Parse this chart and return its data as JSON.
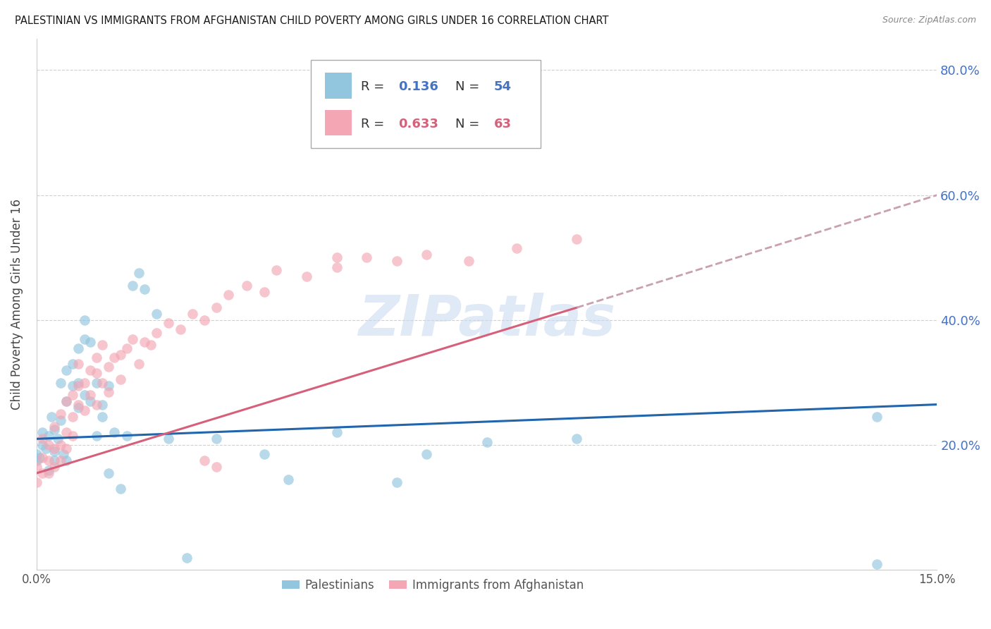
{
  "title": "PALESTINIAN VS IMMIGRANTS FROM AFGHANISTAN CHILD POVERTY AMONG GIRLS UNDER 16 CORRELATION CHART",
  "source": "Source: ZipAtlas.com",
  "ylabel": "Child Poverty Among Girls Under 16",
  "color_blue": "#92c5de",
  "color_pink": "#f4a6b4",
  "line_blue": "#2166ac",
  "line_pink": "#d6607a",
  "line_dashed_color": "#c8a0b0",
  "watermark_text": "ZIPatlas",
  "watermark_color": "#c8d8f0",
  "legend1_label": "R = ",
  "legend1_R": "0.136",
  "legend1_N_label": "N = ",
  "legend1_N": "54",
  "legend2_label": "R = ",
  "legend2_R": "0.633",
  "legend2_N_label": "N = ",
  "legend2_N": "63",
  "bottom_label1": "Palestinians",
  "bottom_label2": "Immigrants from Afghanistan",
  "xlim": [
    0.0,
    0.15
  ],
  "ylim": [
    0.0,
    0.85
  ],
  "background_color": "#ffffff",
  "grid_color": "#d0d0d0",
  "palestinians_x": [
    0.0,
    0.0,
    0.0005,
    0.001,
    0.001,
    0.0015,
    0.002,
    0.002,
    0.0025,
    0.003,
    0.003,
    0.003,
    0.0035,
    0.004,
    0.004,
    0.0045,
    0.005,
    0.005,
    0.005,
    0.006,
    0.006,
    0.007,
    0.007,
    0.007,
    0.008,
    0.008,
    0.008,
    0.009,
    0.009,
    0.01,
    0.01,
    0.011,
    0.011,
    0.012,
    0.012,
    0.013,
    0.014,
    0.015,
    0.016,
    0.017,
    0.018,
    0.02,
    0.022,
    0.025,
    0.03,
    0.038,
    0.042,
    0.05,
    0.06,
    0.065,
    0.075,
    0.09,
    0.14,
    0.14
  ],
  "palestinians_y": [
    0.175,
    0.185,
    0.18,
    0.2,
    0.22,
    0.195,
    0.16,
    0.215,
    0.245,
    0.19,
    0.225,
    0.175,
    0.21,
    0.24,
    0.3,
    0.185,
    0.27,
    0.32,
    0.175,
    0.295,
    0.33,
    0.355,
    0.3,
    0.26,
    0.4,
    0.37,
    0.28,
    0.365,
    0.27,
    0.3,
    0.215,
    0.245,
    0.265,
    0.295,
    0.155,
    0.22,
    0.13,
    0.215,
    0.455,
    0.475,
    0.45,
    0.41,
    0.21,
    0.02,
    0.21,
    0.185,
    0.145,
    0.22,
    0.14,
    0.185,
    0.205,
    0.21,
    0.245,
    0.01
  ],
  "afghanistan_x": [
    0.0,
    0.0,
    0.001,
    0.001,
    0.001,
    0.002,
    0.002,
    0.002,
    0.003,
    0.003,
    0.003,
    0.004,
    0.004,
    0.004,
    0.005,
    0.005,
    0.005,
    0.006,
    0.006,
    0.006,
    0.007,
    0.007,
    0.007,
    0.008,
    0.008,
    0.009,
    0.009,
    0.01,
    0.01,
    0.01,
    0.011,
    0.011,
    0.012,
    0.012,
    0.013,
    0.014,
    0.014,
    0.015,
    0.016,
    0.017,
    0.018,
    0.019,
    0.02,
    0.022,
    0.024,
    0.026,
    0.028,
    0.03,
    0.032,
    0.035,
    0.038,
    0.04,
    0.045,
    0.05,
    0.055,
    0.06,
    0.065,
    0.072,
    0.08,
    0.09,
    0.05,
    0.028,
    0.03
  ],
  "afghanistan_y": [
    0.14,
    0.165,
    0.155,
    0.18,
    0.21,
    0.175,
    0.2,
    0.155,
    0.195,
    0.23,
    0.165,
    0.2,
    0.25,
    0.175,
    0.22,
    0.27,
    0.195,
    0.245,
    0.28,
    0.215,
    0.295,
    0.33,
    0.265,
    0.3,
    0.255,
    0.32,
    0.28,
    0.315,
    0.34,
    0.265,
    0.3,
    0.36,
    0.325,
    0.285,
    0.34,
    0.345,
    0.305,
    0.355,
    0.37,
    0.33,
    0.365,
    0.36,
    0.38,
    0.395,
    0.385,
    0.41,
    0.4,
    0.42,
    0.44,
    0.455,
    0.445,
    0.48,
    0.47,
    0.485,
    0.5,
    0.495,
    0.505,
    0.495,
    0.515,
    0.53,
    0.5,
    0.175,
    0.165
  ],
  "pal_line_x0": 0.0,
  "pal_line_x1": 0.15,
  "pal_line_y0": 0.21,
  "pal_line_y1": 0.265,
  "afg_line_solid_x0": 0.0,
  "afg_line_solid_x1": 0.09,
  "afg_line_solid_y0": 0.155,
  "afg_line_solid_y1": 0.42,
  "afg_line_dashed_x0": 0.09,
  "afg_line_dashed_x1": 0.15,
  "afg_line_dashed_y0": 0.42,
  "afg_line_dashed_y1": 0.6
}
